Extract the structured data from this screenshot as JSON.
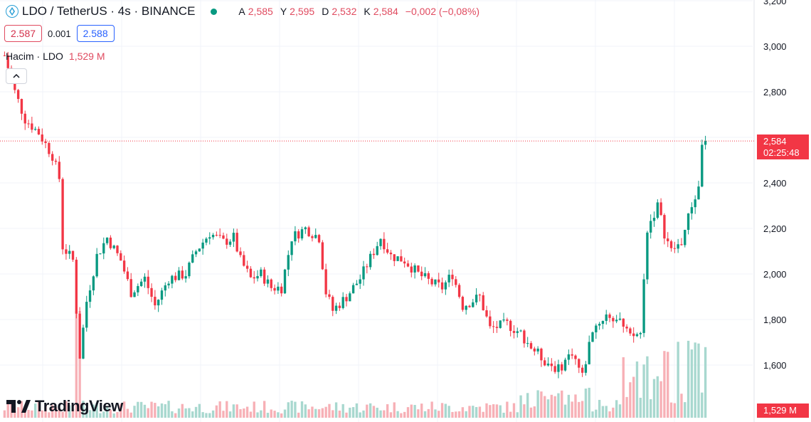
{
  "header": {
    "symbol": "LDO / TetherUS · 4s · BINANCE",
    "ohlc": [
      {
        "key": "A",
        "value": "2,585"
      },
      {
        "key": "Y",
        "value": "2,595"
      },
      {
        "key": "D",
        "value": "2,532"
      },
      {
        "key": "K",
        "value": "2,584"
      }
    ],
    "change": "−0,002 (−0,08%)"
  },
  "order": {
    "sell": "2.587",
    "spread": "0.001",
    "buy": "2.588"
  },
  "volume_legend": {
    "label": "Hacim · LDO",
    "value": "1,529 M"
  },
  "brand": {
    "name": "TradingView"
  },
  "price_tag": {
    "price": "2,584",
    "countdown": "02:25:48"
  },
  "volume_tag": {
    "value": "1,529 M"
  },
  "colors": {
    "up": "#089981",
    "down": "#f23645",
    "up_vol": "#a8d8cf",
    "down_vol": "#f7b0b6"
  },
  "chart_data": {
    "type": "candlestick",
    "y_ticks": [
      "1,600",
      "1,800",
      "2,000",
      "2,200",
      "2,400",
      "2,600",
      "2,800",
      "3,000",
      "3,200"
    ],
    "y_tick_values": [
      1.6,
      1.8,
      2.0,
      2.2,
      2.4,
      2.6,
      2.8,
      3.0,
      3.2
    ],
    "ylim": [
      1.38,
      3.2
    ],
    "last_price": 2.584,
    "price_path": [
      [
        0,
        2.96
      ],
      [
        3,
        2.8
      ],
      [
        6,
        2.68
      ],
      [
        10,
        2.62
      ],
      [
        14,
        2.52
      ],
      [
        16,
        2.42
      ],
      [
        17,
        2.12
      ],
      [
        18,
        2.1
      ],
      [
        20,
        2.06
      ],
      [
        21,
        1.84
      ],
      [
        22,
        1.64
      ],
      [
        24,
        1.88
      ],
      [
        27,
        2.08
      ],
      [
        30,
        2.16
      ],
      [
        34,
        2.06
      ],
      [
        37,
        1.92
      ],
      [
        41,
        1.98
      ],
      [
        44,
        1.86
      ],
      [
        48,
        1.98
      ],
      [
        53,
        2.0
      ],
      [
        56,
        2.1
      ],
      [
        60,
        2.18
      ],
      [
        64,
        2.14
      ],
      [
        67,
        2.16
      ],
      [
        69,
        2.06
      ],
      [
        72,
        1.98
      ],
      [
        75,
        2.0
      ],
      [
        78,
        1.94
      ],
      [
        81,
        1.94
      ],
      [
        84,
        2.16
      ],
      [
        88,
        2.2
      ],
      [
        92,
        2.16
      ],
      [
        94,
        1.92
      ],
      [
        96,
        1.84
      ],
      [
        100,
        1.9
      ],
      [
        104,
        1.98
      ],
      [
        108,
        2.1
      ],
      [
        110,
        2.16
      ],
      [
        113,
        2.08
      ],
      [
        117,
        2.06
      ],
      [
        121,
        2.0
      ],
      [
        125,
        1.96
      ],
      [
        128,
        1.94
      ],
      [
        131,
        2.0
      ],
      [
        134,
        1.86
      ],
      [
        139,
        1.9
      ],
      [
        142,
        1.76
      ],
      [
        147,
        1.78
      ],
      [
        151,
        1.74
      ],
      [
        154,
        1.68
      ],
      [
        158,
        1.62
      ],
      [
        162,
        1.58
      ],
      [
        166,
        1.66
      ],
      [
        169,
        1.55
      ],
      [
        172,
        1.76
      ],
      [
        176,
        1.82
      ],
      [
        179,
        1.8
      ],
      [
        183,
        1.72
      ],
      [
        186,
        1.74
      ],
      [
        188,
        2.2
      ],
      [
        191,
        2.3
      ],
      [
        193,
        2.18
      ],
      [
        195,
        2.1
      ],
      [
        198,
        2.14
      ],
      [
        201,
        2.3
      ],
      [
        203,
        2.38
      ],
      [
        204,
        2.58
      ],
      [
        205,
        2.584
      ]
    ],
    "n_candles": 206
  }
}
